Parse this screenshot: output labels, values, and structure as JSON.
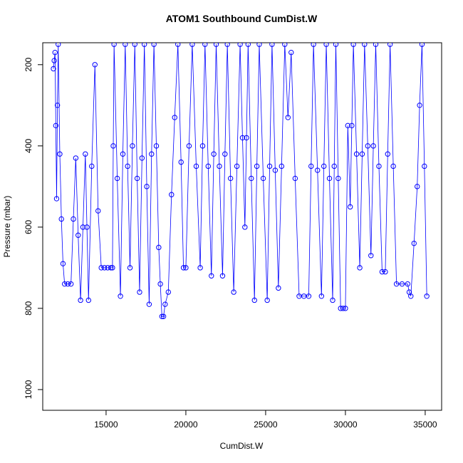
{
  "chart_data": {
    "type": "line",
    "markers": true,
    "title": "ATOM1 Southbound CumDist.W",
    "xlabel": "CumDist.W",
    "ylabel": "Pressure (mbar)",
    "color": "#0000ff",
    "xlim": [
      11030,
      36030
    ],
    "ylim": [
      1051,
      146
    ],
    "xticks": [
      15000,
      20000,
      25000,
      30000,
      35000
    ],
    "yticks": [
      200,
      400,
      600,
      800,
      1000
    ],
    "x": [
      11700,
      11750,
      11800,
      11850,
      11900,
      11950,
      12000,
      12100,
      12200,
      12300,
      12400,
      12600,
      12800,
      12950,
      13100,
      13250,
      13400,
      13550,
      13700,
      13800,
      13900,
      14100,
      14300,
      14500,
      14700,
      14900,
      15100,
      15300,
      15400,
      15450,
      15500,
      15700,
      15900,
      16050,
      16200,
      16350,
      16500,
      16650,
      16800,
      16950,
      17100,
      17250,
      17400,
      17550,
      17700,
      17850,
      18000,
      18150,
      18300,
      18400,
      18500,
      18600,
      18700,
      18900,
      19100,
      19300,
      19500,
      19700,
      19850,
      20000,
      20200,
      20400,
      20650,
      20900,
      21050,
      21200,
      21400,
      21600,
      21750,
      21900,
      22100,
      22300,
      22450,
      22600,
      22800,
      23000,
      23200,
      23400,
      23550,
      23700,
      23800,
      23900,
      24100,
      24300,
      24450,
      24600,
      24850,
      25100,
      25250,
      25400,
      25600,
      25800,
      26000,
      26200,
      26400,
      26600,
      26850,
      27100,
      27400,
      27700,
      27850,
      28000,
      28250,
      28500,
      28650,
      28800,
      29000,
      29200,
      29300,
      29400,
      29550,
      29700,
      29850,
      30000,
      30150,
      30300,
      30400,
      30500,
      30700,
      30900,
      31050,
      31200,
      31400,
      31600,
      31750,
      31900,
      32100,
      32300,
      32500,
      32650,
      32800,
      33000,
      33200,
      33550,
      33900,
      34000,
      34100,
      34300,
      34500,
      34650,
      34800,
      34950,
      35100
    ],
    "values": [
      210,
      190,
      170,
      350,
      530,
      300,
      150,
      420,
      580,
      690,
      740,
      740,
      740,
      580,
      430,
      620,
      780,
      600,
      420,
      600,
      780,
      450,
      200,
      560,
      700,
      700,
      700,
      700,
      700,
      400,
      150,
      480,
      770,
      420,
      150,
      450,
      700,
      400,
      150,
      480,
      760,
      430,
      150,
      500,
      790,
      420,
      150,
      400,
      650,
      740,
      820,
      820,
      790,
      760,
      520,
      330,
      150,
      440,
      700,
      700,
      400,
      150,
      450,
      700,
      400,
      150,
      450,
      720,
      420,
      150,
      450,
      720,
      420,
      150,
      480,
      760,
      450,
      150,
      380,
      600,
      380,
      150,
      480,
      780,
      450,
      150,
      480,
      780,
      450,
      150,
      460,
      750,
      450,
      150,
      330,
      170,
      480,
      770,
      770,
      770,
      450,
      150,
      460,
      770,
      450,
      150,
      480,
      780,
      450,
      150,
      480,
      800,
      800,
      800,
      350,
      550,
      350,
      150,
      420,
      700,
      420,
      150,
      400,
      670,
      400,
      150,
      450,
      710,
      710,
      420,
      150,
      450,
      740,
      740,
      740,
      760,
      770,
      640,
      500,
      300,
      150,
      450,
      770
    ]
  }
}
